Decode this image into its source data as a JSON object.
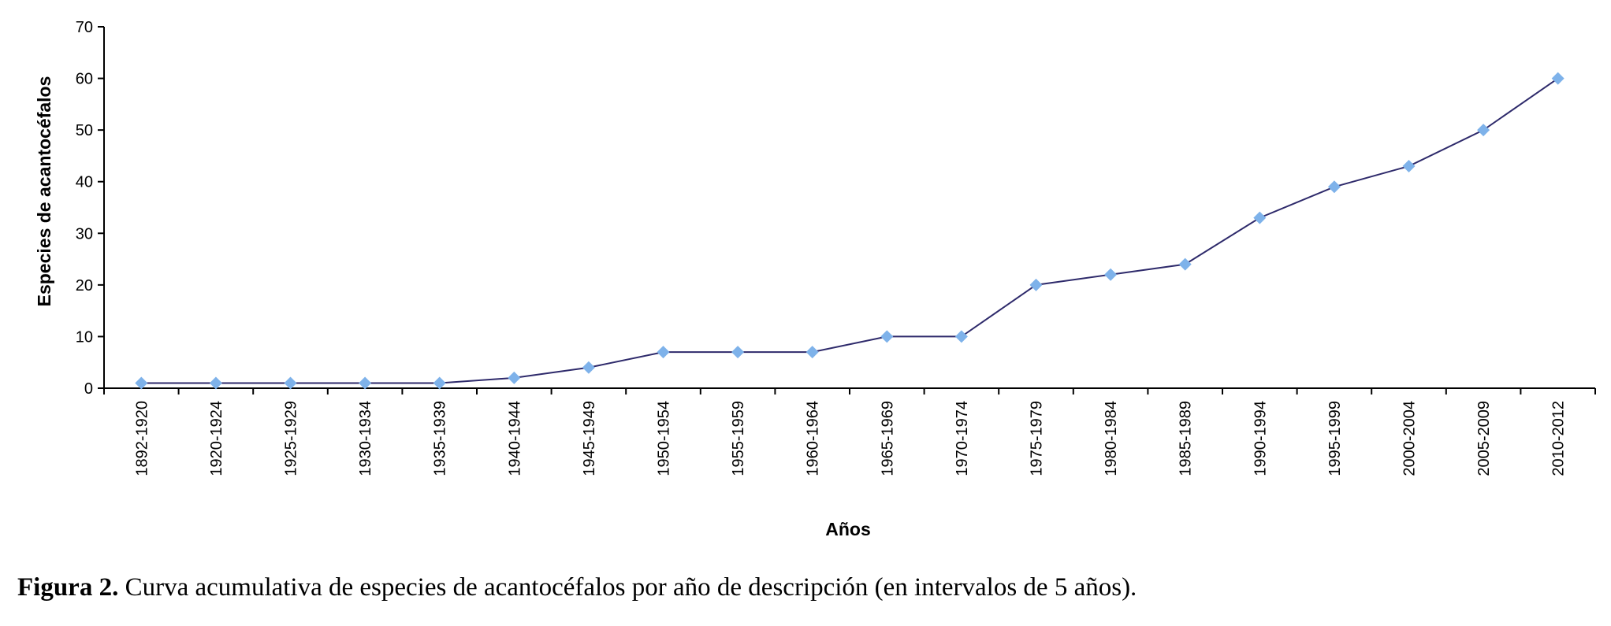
{
  "chart_data": {
    "type": "line",
    "title": "",
    "xlabel": "Años",
    "ylabel": "Especies de acantocéfalos",
    "ylim": [
      0,
      70
    ],
    "yticks": [
      0,
      10,
      20,
      30,
      40,
      50,
      60,
      70
    ],
    "grid": false,
    "legend": "none",
    "series_color": "#2e2a6b",
    "marker_color": "#7eb2ea",
    "categories": [
      "1892-1920",
      "1920-1924",
      "1925-1929",
      "1930-1934",
      "1935-1939",
      "1940-1944",
      "1945-1949",
      "1950-1954",
      "1955-1959",
      "1960-1964",
      "1965-1969",
      "1970-1974",
      "1975-1979",
      "1980-1984",
      "1985-1989",
      "1990-1994",
      "1995-1999",
      "2000-2004",
      "2005-2009",
      "2010-2012"
    ],
    "series": [
      {
        "name": "Especies",
        "values": [
          1,
          1,
          1,
          1,
          1,
          2,
          4,
          7,
          7,
          7,
          10,
          10,
          20,
          22,
          24,
          33,
          39,
          43,
          50,
          60
        ]
      }
    ]
  },
  "caption": {
    "label": "Figura 2.",
    "text": " Curva acumulativa de especies de acantocéfalos por año de descripción (en intervalos de 5 años)."
  }
}
